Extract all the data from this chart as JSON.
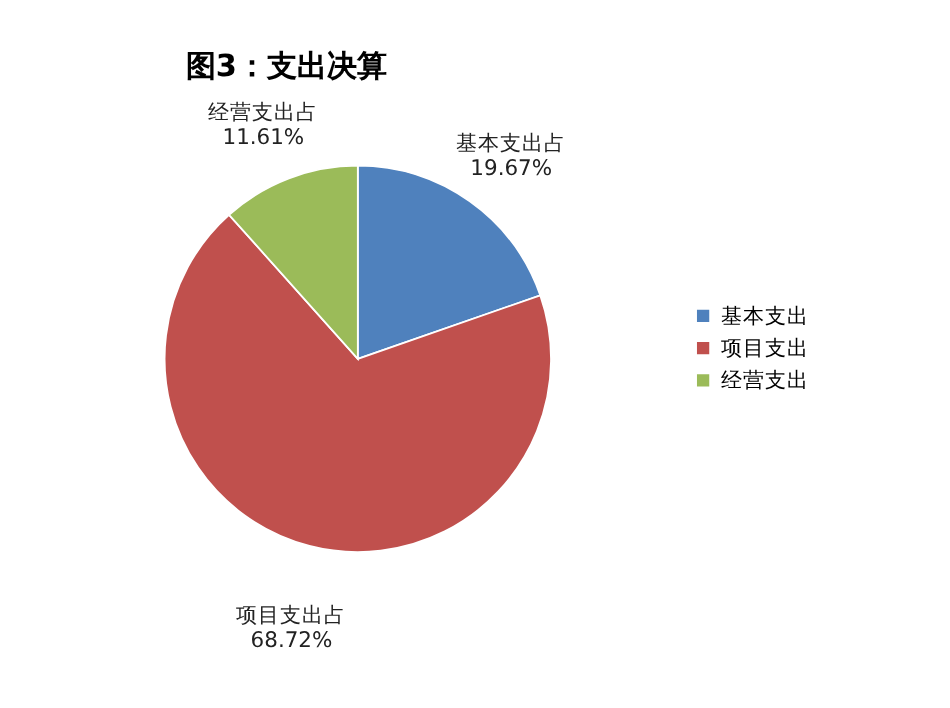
{
  "chart_data": {
    "type": "pie",
    "title": "图3：支出决算",
    "categories": [
      "基本支出",
      "项目支出",
      "经营支出"
    ],
    "values": [
      19.67,
      68.72,
      11.61
    ],
    "colors": [
      "#4f81bd",
      "#c0504d",
      "#9bbb59"
    ],
    "value_labels": [
      "基本支出占\n19.67%",
      "项目支出占\n68.72%",
      "经营支出占\n11.61%"
    ],
    "legend": "right"
  }
}
